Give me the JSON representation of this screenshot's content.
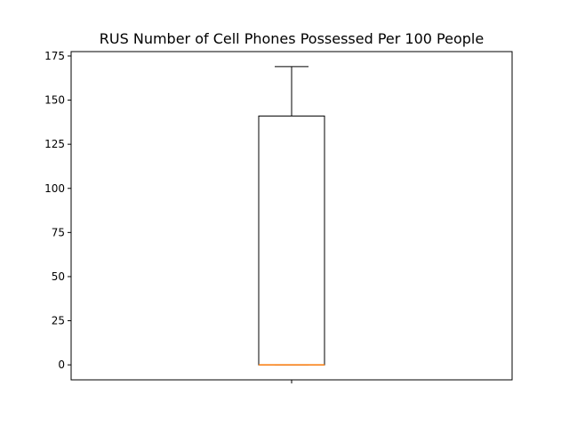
{
  "chart_data": {
    "type": "box",
    "title": "RUS Number of Cell Phones Possessed Per 100 People",
    "xlabel": "",
    "ylabel": "",
    "ylim": [
      -8.5,
      177.5
    ],
    "yticks": [
      0,
      25,
      50,
      75,
      100,
      125,
      150,
      175
    ],
    "grid": false,
    "boxes": [
      {
        "whisker_low": 0,
        "q1": 0,
        "median": 0,
        "q3": 141,
        "whisker_high": 169
      }
    ],
    "colors": {
      "box": "#000000",
      "median": "#ff7f0e"
    }
  }
}
